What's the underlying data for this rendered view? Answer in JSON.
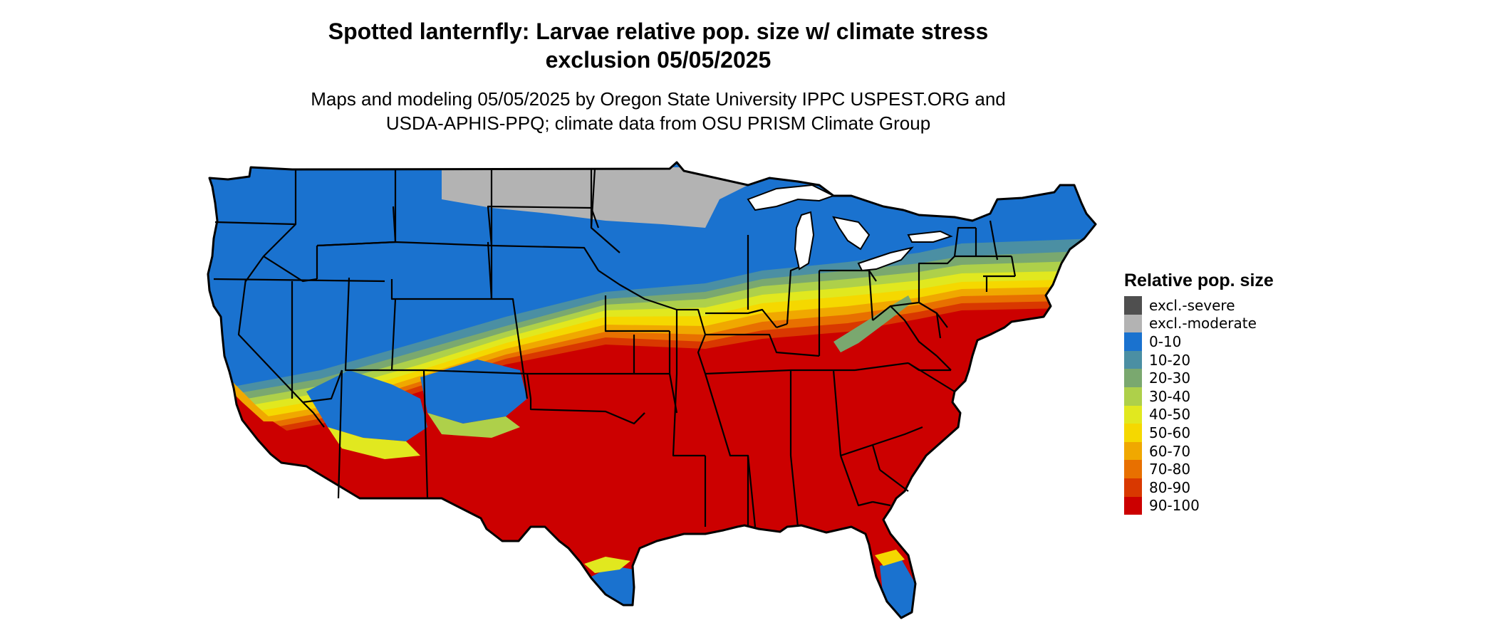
{
  "title": {
    "line1": "Spotted lanternfly: Larvae relative pop. size w/ climate stress",
    "line2": "exclusion 05/05/2025"
  },
  "subtitle": {
    "line1": "Maps and modeling 05/05/2025 by Oregon State University IPPC USPEST.ORG and",
    "line2": "USDA-APHIS-PPQ; climate data from OSU PRISM Climate Group"
  },
  "legend": {
    "title": "Relative pop. size",
    "items": [
      {
        "label": "excl.-severe",
        "color": "#4f4f4f"
      },
      {
        "label": "excl.-moderate",
        "color": "#b3b3b3"
      },
      {
        "label": "0-10",
        "color": "#1a72cf"
      },
      {
        "label": "10-20",
        "color": "#4b8fa3"
      },
      {
        "label": "20-30",
        "color": "#7aa86f"
      },
      {
        "label": "30-40",
        "color": "#aed04a"
      },
      {
        "label": "40-50",
        "color": "#e1e81f"
      },
      {
        "label": "50-60",
        "color": "#f5d800"
      },
      {
        "label": "60-70",
        "color": "#f0a800"
      },
      {
        "label": "70-80",
        "color": "#e87000"
      },
      {
        "label": "80-90",
        "color": "#d93800"
      },
      {
        "label": "90-100",
        "color": "#cc0000"
      }
    ]
  },
  "map": {
    "region": "Contiguous United States",
    "border_color": "#000000"
  }
}
